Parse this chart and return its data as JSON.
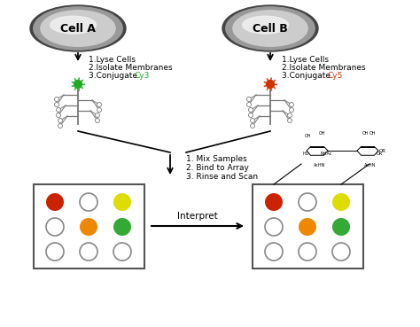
{
  "cell_a_label": "Cell A",
  "cell_b_label": "Cell B",
  "steps_left": [
    "1.Lyse Cells",
    "2.Isolate Membranes",
    "3.Conjugate "
  ],
  "cy3_label": "Cy3",
  "cy3_color": "#22aa22",
  "steps_right": [
    "1.Lyse Cells",
    "2.Isolate Membranes",
    "3.Conjugate "
  ],
  "cy5_label": "Cy5",
  "cy5_color": "#cc3300",
  "mix_steps": [
    "1. Mix Samples",
    "2. Bind to Array",
    "3. Rinse and Scan"
  ],
  "interpret_label": "Interpret",
  "grid_colors_left": [
    [
      "red",
      "white",
      "yellow"
    ],
    [
      "white",
      "orange",
      "green"
    ],
    [
      "white",
      "white",
      "white"
    ]
  ],
  "grid_colors_right": [
    [
      "red",
      "white",
      "yellow"
    ],
    [
      "white",
      "orange",
      "green"
    ],
    [
      "white",
      "white",
      "white"
    ]
  ],
  "color_map": {
    "red": "#cc2200",
    "white": "#ffffff",
    "yellow": "#dddd00",
    "orange": "#ee8800",
    "green": "#33aa33"
  },
  "background": "#ffffff"
}
